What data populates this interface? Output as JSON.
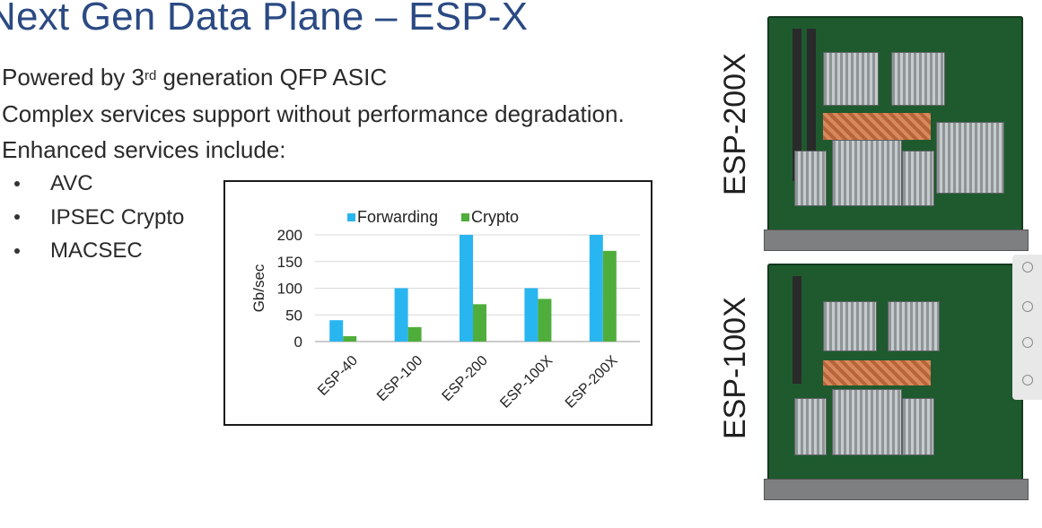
{
  "slide": {
    "title": "Next Gen Data Plane – ESP-X",
    "bullets": [
      {
        "pre": "Powered by 3",
        "sup": "rd",
        "post": " generation QFP ASIC"
      },
      {
        "text": "Complex services support without performance degradation."
      },
      {
        "text": "Enhanced services include:"
      }
    ],
    "sub_bullets": [
      "AVC",
      "IPSEC Crypto",
      "MACSEC"
    ],
    "board_labels": [
      "ESP-200X",
      "ESP-100X"
    ]
  },
  "colors": {
    "title": "#2b4a83",
    "forwarding": "#29b6f0",
    "crypto": "#4fae3b"
  },
  "chart_data": {
    "type": "bar",
    "categories": [
      "ESP-40",
      "ESP-100",
      "ESP-200",
      "ESP-100X",
      "ESP-200X"
    ],
    "series": [
      {
        "name": "Forwarding",
        "values": [
          40,
          100,
          200,
          100,
          200
        ]
      },
      {
        "name": "Crypto",
        "values": [
          10,
          27,
          70,
          80,
          170
        ]
      }
    ],
    "title": "",
    "xlabel": "",
    "ylabel": "Gb/sec",
    "ylim": [
      0,
      200
    ],
    "yticks": [
      0,
      50,
      100,
      150,
      200
    ],
    "grid": true,
    "legend": "top"
  }
}
